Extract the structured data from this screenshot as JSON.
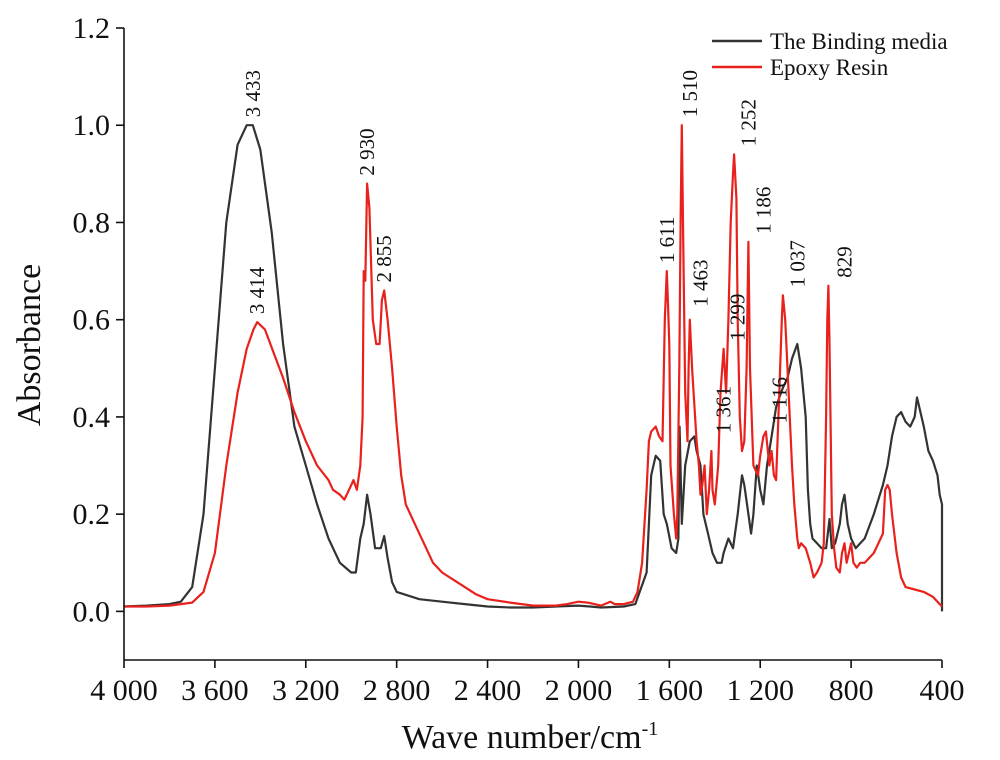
{
  "chart_data": {
    "type": "line",
    "title": "",
    "xlabel": "Wave number/cm",
    "xlabel_superscript": "-1",
    "ylabel": "Absorbance",
    "xlim": [
      4000,
      400
    ],
    "ylim": [
      -0.1,
      1.2
    ],
    "x_reversed": true,
    "x_ticks": [
      4000,
      3600,
      3200,
      2800,
      2400,
      2000,
      1600,
      1200,
      800,
      400
    ],
    "x_tick_labels": [
      "4 000",
      "3 600",
      "3 200",
      "2 800",
      "2 400",
      "2 000",
      "1 600",
      "1 200",
      "800",
      "400"
    ],
    "y_ticks": [
      0.0,
      0.2,
      0.4,
      0.6,
      0.8,
      1.0,
      1.2
    ],
    "y_tick_labels": [
      "0.0",
      "0.2",
      "0.4",
      "0.6",
      "0.8",
      "1.0",
      "1.2"
    ],
    "grid": false,
    "legend_position": "top-right",
    "series": [
      {
        "name": "The Binding media",
        "color": "#333333",
        "points": [
          [
            4000,
            0.01
          ],
          [
            3900,
            0.012
          ],
          [
            3800,
            0.015
          ],
          [
            3750,
            0.02
          ],
          [
            3700,
            0.05
          ],
          [
            3650,
            0.2
          ],
          [
            3600,
            0.5
          ],
          [
            3550,
            0.8
          ],
          [
            3500,
            0.96
          ],
          [
            3460,
            1.0
          ],
          [
            3433,
            1.0
          ],
          [
            3400,
            0.95
          ],
          [
            3350,
            0.78
          ],
          [
            3300,
            0.55
          ],
          [
            3250,
            0.38
          ],
          [
            3200,
            0.3
          ],
          [
            3150,
            0.22
          ],
          [
            3100,
            0.15
          ],
          [
            3050,
            0.1
          ],
          [
            3000,
            0.08
          ],
          [
            2980,
            0.08
          ],
          [
            2960,
            0.15
          ],
          [
            2945,
            0.18
          ],
          [
            2930,
            0.24
          ],
          [
            2915,
            0.2
          ],
          [
            2895,
            0.13
          ],
          [
            2870,
            0.13
          ],
          [
            2855,
            0.155
          ],
          [
            2840,
            0.11
          ],
          [
            2820,
            0.06
          ],
          [
            2800,
            0.04
          ],
          [
            2700,
            0.025
          ],
          [
            2600,
            0.02
          ],
          [
            2500,
            0.015
          ],
          [
            2400,
            0.01
          ],
          [
            2300,
            0.008
          ],
          [
            2200,
            0.008
          ],
          [
            2100,
            0.01
          ],
          [
            2000,
            0.012
          ],
          [
            1950,
            0.01
          ],
          [
            1900,
            0.008
          ],
          [
            1800,
            0.01
          ],
          [
            1750,
            0.015
          ],
          [
            1700,
            0.08
          ],
          [
            1680,
            0.28
          ],
          [
            1660,
            0.32
          ],
          [
            1640,
            0.31
          ],
          [
            1625,
            0.2
          ],
          [
            1611,
            0.18
          ],
          [
            1590,
            0.13
          ],
          [
            1570,
            0.12
          ],
          [
            1560,
            0.15
          ],
          [
            1555,
            0.38
          ],
          [
            1545,
            0.18
          ],
          [
            1530,
            0.3
          ],
          [
            1510,
            0.35
          ],
          [
            1490,
            0.36
          ],
          [
            1480,
            0.33
          ],
          [
            1463,
            0.3
          ],
          [
            1450,
            0.2
          ],
          [
            1430,
            0.16
          ],
          [
            1410,
            0.12
          ],
          [
            1390,
            0.1
          ],
          [
            1370,
            0.1
          ],
          [
            1361,
            0.12
          ],
          [
            1340,
            0.15
          ],
          [
            1320,
            0.13
          ],
          [
            1299,
            0.2
          ],
          [
            1280,
            0.28
          ],
          [
            1270,
            0.26
          ],
          [
            1252,
            0.2
          ],
          [
            1240,
            0.16
          ],
          [
            1230,
            0.2
          ],
          [
            1215,
            0.3
          ],
          [
            1200,
            0.25
          ],
          [
            1186,
            0.22
          ],
          [
            1170,
            0.3
          ],
          [
            1150,
            0.36
          ],
          [
            1130,
            0.42
          ],
          [
            1116,
            0.44
          ],
          [
            1100,
            0.46
          ],
          [
            1080,
            0.48
          ],
          [
            1060,
            0.52
          ],
          [
            1037,
            0.55
          ],
          [
            1020,
            0.5
          ],
          [
            1000,
            0.4
          ],
          [
            990,
            0.25
          ],
          [
            980,
            0.18
          ],
          [
            970,
            0.15
          ],
          [
            950,
            0.14
          ],
          [
            930,
            0.13
          ],
          [
            910,
            0.13
          ],
          [
            895,
            0.19
          ],
          [
            885,
            0.13
          ],
          [
            870,
            0.14
          ],
          [
            850,
            0.18
          ],
          [
            840,
            0.22
          ],
          [
            829,
            0.24
          ],
          [
            815,
            0.18
          ],
          [
            800,
            0.15
          ],
          [
            780,
            0.13
          ],
          [
            760,
            0.14
          ],
          [
            740,
            0.15
          ],
          [
            700,
            0.2
          ],
          [
            660,
            0.26
          ],
          [
            640,
            0.3
          ],
          [
            620,
            0.36
          ],
          [
            600,
            0.4
          ],
          [
            580,
            0.41
          ],
          [
            560,
            0.39
          ],
          [
            540,
            0.38
          ],
          [
            520,
            0.4
          ],
          [
            510,
            0.44
          ],
          [
            500,
            0.42
          ],
          [
            480,
            0.38
          ],
          [
            460,
            0.33
          ],
          [
            440,
            0.31
          ],
          [
            420,
            0.28
          ],
          [
            410,
            0.24
          ],
          [
            400,
            0.22
          ],
          [
            400,
            0.0
          ]
        ]
      },
      {
        "name": "Epoxy Resin",
        "color": "#e8211c",
        "points": [
          [
            4000,
            0.01
          ],
          [
            3900,
            0.01
          ],
          [
            3800,
            0.012
          ],
          [
            3700,
            0.018
          ],
          [
            3650,
            0.04
          ],
          [
            3600,
            0.12
          ],
          [
            3550,
            0.3
          ],
          [
            3500,
            0.45
          ],
          [
            3460,
            0.54
          ],
          [
            3430,
            0.58
          ],
          [
            3414,
            0.595
          ],
          [
            3380,
            0.58
          ],
          [
            3340,
            0.53
          ],
          [
            3300,
            0.48
          ],
          [
            3250,
            0.41
          ],
          [
            3200,
            0.35
          ],
          [
            3150,
            0.3
          ],
          [
            3100,
            0.27
          ],
          [
            3080,
            0.25
          ],
          [
            3050,
            0.24
          ],
          [
            3030,
            0.23
          ],
          [
            3010,
            0.25
          ],
          [
            2990,
            0.27
          ],
          [
            2975,
            0.25
          ],
          [
            2960,
            0.3
          ],
          [
            2950,
            0.4
          ],
          [
            2945,
            0.7
          ],
          [
            2938,
            0.68
          ],
          [
            2930,
            0.88
          ],
          [
            2920,
            0.83
          ],
          [
            2905,
            0.6
          ],
          [
            2890,
            0.55
          ],
          [
            2875,
            0.55
          ],
          [
            2865,
            0.64
          ],
          [
            2855,
            0.66
          ],
          [
            2840,
            0.6
          ],
          [
            2820,
            0.5
          ],
          [
            2800,
            0.38
          ],
          [
            2780,
            0.28
          ],
          [
            2760,
            0.22
          ],
          [
            2720,
            0.18
          ],
          [
            2680,
            0.14
          ],
          [
            2640,
            0.1
          ],
          [
            2600,
            0.08
          ],
          [
            2550,
            0.065
          ],
          [
            2500,
            0.05
          ],
          [
            2450,
            0.035
          ],
          [
            2400,
            0.025
          ],
          [
            2300,
            0.018
          ],
          [
            2200,
            0.012
          ],
          [
            2100,
            0.012
          ],
          [
            2050,
            0.015
          ],
          [
            2000,
            0.02
          ],
          [
            1960,
            0.018
          ],
          [
            1900,
            0.012
          ],
          [
            1860,
            0.02
          ],
          [
            1840,
            0.015
          ],
          [
            1800,
            0.015
          ],
          [
            1760,
            0.02
          ],
          [
            1740,
            0.04
          ],
          [
            1720,
            0.1
          ],
          [
            1700,
            0.25
          ],
          [
            1690,
            0.35
          ],
          [
            1680,
            0.37
          ],
          [
            1660,
            0.38
          ],
          [
            1645,
            0.36
          ],
          [
            1630,
            0.35
          ],
          [
            1620,
            0.6
          ],
          [
            1611,
            0.7
          ],
          [
            1605,
            0.62
          ],
          [
            1600,
            0.55
          ],
          [
            1595,
            0.3
          ],
          [
            1580,
            0.2
          ],
          [
            1570,
            0.15
          ],
          [
            1565,
            0.2
          ],
          [
            1556,
            0.5
          ],
          [
            1550,
            0.82
          ],
          [
            1545,
            1.0
          ],
          [
            1540,
            0.8
          ],
          [
            1530,
            0.45
          ],
          [
            1520,
            0.35
          ],
          [
            1515,
            0.5
          ],
          [
            1510,
            0.6
          ],
          [
            1500,
            0.5
          ],
          [
            1480,
            0.35
          ],
          [
            1470,
            0.3
          ],
          [
            1463,
            0.24
          ],
          [
            1455,
            0.26
          ],
          [
            1445,
            0.3
          ],
          [
            1435,
            0.2
          ],
          [
            1425,
            0.25
          ],
          [
            1415,
            0.33
          ],
          [
            1410,
            0.25
          ],
          [
            1400,
            0.22
          ],
          [
            1385,
            0.3
          ],
          [
            1375,
            0.45
          ],
          [
            1361,
            0.54
          ],
          [
            1350,
            0.45
          ],
          [
            1340,
            0.6
          ],
          [
            1330,
            0.8
          ],
          [
            1320,
            0.9
          ],
          [
            1315,
            0.94
          ],
          [
            1305,
            0.85
          ],
          [
            1299,
            0.6
          ],
          [
            1290,
            0.4
          ],
          [
            1280,
            0.33
          ],
          [
            1270,
            0.35
          ],
          [
            1260,
            0.5
          ],
          [
            1252,
            0.76
          ],
          [
            1245,
            0.5
          ],
          [
            1230,
            0.3
          ],
          [
            1210,
            0.28
          ],
          [
            1200,
            0.32
          ],
          [
            1186,
            0.36
          ],
          [
            1175,
            0.37
          ],
          [
            1160,
            0.3
          ],
          [
            1150,
            0.33
          ],
          [
            1140,
            0.28
          ],
          [
            1130,
            0.27
          ],
          [
            1116,
            0.45
          ],
          [
            1105,
            0.6
          ],
          [
            1100,
            0.65
          ],
          [
            1090,
            0.6
          ],
          [
            1080,
            0.5
          ],
          [
            1060,
            0.3
          ],
          [
            1050,
            0.22
          ],
          [
            1037,
            0.15
          ],
          [
            1030,
            0.13
          ],
          [
            1020,
            0.14
          ],
          [
            1000,
            0.13
          ],
          [
            980,
            0.1
          ],
          [
            965,
            0.07
          ],
          [
            950,
            0.08
          ],
          [
            930,
            0.1
          ],
          [
            920,
            0.14
          ],
          [
            910,
            0.4
          ],
          [
            905,
            0.6
          ],
          [
            900,
            0.67
          ],
          [
            895,
            0.55
          ],
          [
            885,
            0.2
          ],
          [
            875,
            0.13
          ],
          [
            865,
            0.09
          ],
          [
            850,
            0.08
          ],
          [
            840,
            0.12
          ],
          [
            829,
            0.14
          ],
          [
            820,
            0.1
          ],
          [
            805,
            0.13
          ],
          [
            800,
            0.14
          ],
          [
            790,
            0.1
          ],
          [
            775,
            0.09
          ],
          [
            760,
            0.1
          ],
          [
            740,
            0.1
          ],
          [
            720,
            0.11
          ],
          [
            700,
            0.12
          ],
          [
            680,
            0.14
          ],
          [
            660,
            0.16
          ],
          [
            650,
            0.25
          ],
          [
            640,
            0.26
          ],
          [
            630,
            0.25
          ],
          [
            620,
            0.2
          ],
          [
            600,
            0.12
          ],
          [
            580,
            0.07
          ],
          [
            560,
            0.05
          ],
          [
            520,
            0.045
          ],
          [
            480,
            0.04
          ],
          [
            440,
            0.03
          ],
          [
            420,
            0.02
          ],
          [
            400,
            0.01
          ]
        ]
      }
    ],
    "annotations": [
      {
        "text": "3 433",
        "x": 3433,
        "y": 1.0
      },
      {
        "text": "3 414",
        "x": 3414,
        "y": 0.595
      },
      {
        "text": "2 930",
        "x": 2930,
        "y": 0.88
      },
      {
        "text": "2 855",
        "x": 2855,
        "y": 0.66
      },
      {
        "text": "1 611",
        "x": 1611,
        "y": 0.7
      },
      {
        "text": "1 510",
        "x": 1510,
        "y": 1.0
      },
      {
        "text": "1 463",
        "x": 1463,
        "y": 0.61
      },
      {
        "text": "1 361",
        "x": 1361,
        "y": 0.35
      },
      {
        "text": "1 299",
        "x": 1299,
        "y": 0.54
      },
      {
        "text": "1 252",
        "x": 1252,
        "y": 0.94
      },
      {
        "text": "1 186",
        "x": 1186,
        "y": 0.76
      },
      {
        "text": "1 116",
        "x": 1116,
        "y": 0.37
      },
      {
        "text": "1 037",
        "x": 1037,
        "y": 0.65
      },
      {
        "text": "829",
        "x": 829,
        "y": 0.67
      }
    ]
  }
}
